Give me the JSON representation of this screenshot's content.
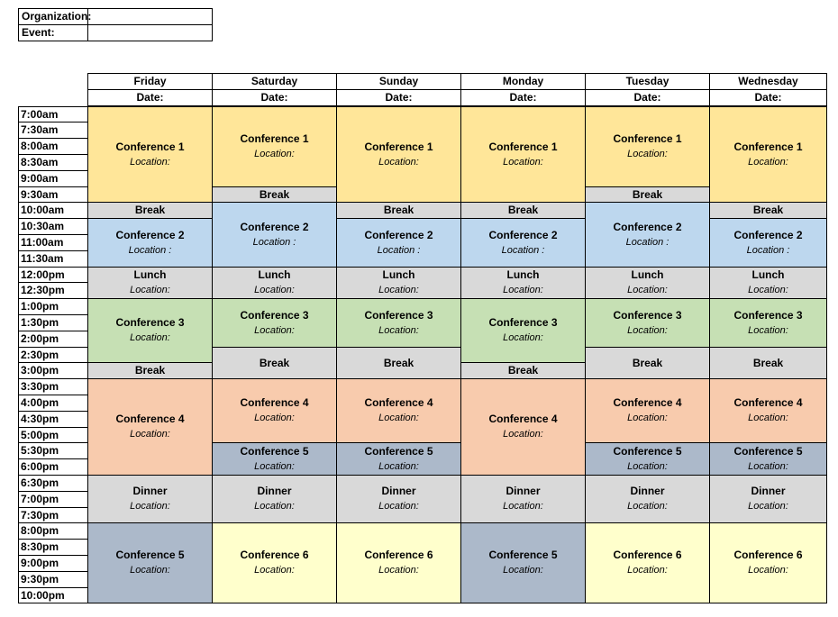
{
  "header": {
    "organization_label": "Organization:",
    "event_label": "Event:",
    "organization_value": "",
    "event_value": ""
  },
  "days": [
    "Friday",
    "Saturday",
    "Sunday",
    "Monday",
    "Tuesday",
    "Wednesday"
  ],
  "date_label": "Date:",
  "times": [
    "7:00am",
    "7:30am",
    "8:00am",
    "8:30am",
    "9:00am",
    "9:30am",
    "10:00am",
    "10:30am",
    "11:00am",
    "11:30am",
    "12:00pm",
    "12:30pm",
    "1:00pm",
    "1:30pm",
    "2:00pm",
    "2:30pm",
    "3:00pm",
    "3:30pm",
    "4:00pm",
    "4:30pm",
    "5:00pm",
    "5:30pm",
    "6:00pm",
    "6:30pm",
    "7:00pm",
    "7:30pm",
    "8:00pm",
    "8:30pm",
    "9:00pm",
    "9:30pm",
    "10:00pm"
  ],
  "colors": {
    "conference_1": "#FFE699",
    "conference_2": "#BDD7EE",
    "conference_3": "#C6E0B4",
    "conference_4": "#F8CBAD",
    "conference_5": "#ACB9CA",
    "conference_6": "#FFFFCC",
    "break_meal": "#D9D9D9"
  },
  "schedule": [
    [
      {
        "start": 0,
        "span": 6,
        "title": "Conference 1",
        "location": "Location:",
        "color": "c1"
      },
      {
        "start": 6,
        "span": 1,
        "title": "Break",
        "location": "",
        "color": "gray"
      },
      {
        "start": 7,
        "span": 3,
        "title": "Conference 2",
        "location": "Location :",
        "color": "c2"
      },
      {
        "start": 10,
        "span": 2,
        "title": "Lunch",
        "location": "Location:",
        "color": "gray"
      },
      {
        "start": 12,
        "span": 4,
        "title": "Conference 3",
        "location": "Location:",
        "color": "c3"
      },
      {
        "start": 16,
        "span": 1,
        "title": "Break",
        "location": "",
        "color": "gray"
      },
      {
        "start": 17,
        "span": 6,
        "title": "Conference 4",
        "location": "Location:",
        "color": "c4"
      },
      {
        "start": 23,
        "span": 3,
        "title": "Dinner",
        "location": "Location:",
        "color": "gray"
      },
      {
        "start": 26,
        "span": 5,
        "title": "Conference 5",
        "location": "Location:",
        "color": "c5"
      }
    ],
    [
      {
        "start": 0,
        "span": 5,
        "title": "Conference 1",
        "location": "Location:",
        "color": "c1"
      },
      {
        "start": 5,
        "span": 1,
        "title": "Break",
        "location": "",
        "color": "gray"
      },
      {
        "start": 6,
        "span": 4,
        "title": "Conference 2",
        "location": "Location :",
        "color": "c2"
      },
      {
        "start": 10,
        "span": 2,
        "title": "Lunch",
        "location": "Location:",
        "color": "gray"
      },
      {
        "start": 12,
        "span": 3,
        "title": "Conference 3",
        "location": "Location:",
        "color": "c3"
      },
      {
        "start": 15,
        "span": 2,
        "title": "Break",
        "location": "",
        "color": "gray"
      },
      {
        "start": 17,
        "span": 4,
        "title": "Conference 4",
        "location": "Location:",
        "color": "c4"
      },
      {
        "start": 21,
        "span": 2,
        "title": "Conference 5",
        "location": "Location:",
        "color": "c5"
      },
      {
        "start": 23,
        "span": 3,
        "title": "Dinner",
        "location": "Location:",
        "color": "gray"
      },
      {
        "start": 26,
        "span": 5,
        "title": "Conference 6",
        "location": "Location:",
        "color": "c6"
      }
    ],
    [
      {
        "start": 0,
        "span": 6,
        "title": "Conference 1",
        "location": "Location:",
        "color": "c1"
      },
      {
        "start": 6,
        "span": 1,
        "title": "Break",
        "location": "",
        "color": "gray"
      },
      {
        "start": 7,
        "span": 3,
        "title": "Conference 2",
        "location": "Location :",
        "color": "c2"
      },
      {
        "start": 10,
        "span": 2,
        "title": "Lunch",
        "location": "Location:",
        "color": "gray"
      },
      {
        "start": 12,
        "span": 3,
        "title": "Conference 3",
        "location": "Location:",
        "color": "c3"
      },
      {
        "start": 15,
        "span": 2,
        "title": "Break",
        "location": "",
        "color": "gray"
      },
      {
        "start": 17,
        "span": 4,
        "title": "Conference 4",
        "location": "Location:",
        "color": "c4"
      },
      {
        "start": 21,
        "span": 2,
        "title": "Conference 5",
        "location": "Location:",
        "color": "c5"
      },
      {
        "start": 23,
        "span": 3,
        "title": "Dinner",
        "location": "Location:",
        "color": "gray"
      },
      {
        "start": 26,
        "span": 5,
        "title": "Conference 6",
        "location": "Location:",
        "color": "c6"
      }
    ],
    [
      {
        "start": 0,
        "span": 6,
        "title": "Conference 1",
        "location": "Location:",
        "color": "c1"
      },
      {
        "start": 6,
        "span": 1,
        "title": "Break",
        "location": "",
        "color": "gray"
      },
      {
        "start": 7,
        "span": 3,
        "title": "Conference 2",
        "location": "Location :",
        "color": "c2"
      },
      {
        "start": 10,
        "span": 2,
        "title": "Lunch",
        "location": "Location:",
        "color": "gray"
      },
      {
        "start": 12,
        "span": 4,
        "title": "Conference 3",
        "location": "Location:",
        "color": "c3"
      },
      {
        "start": 16,
        "span": 1,
        "title": "Break",
        "location": "",
        "color": "gray"
      },
      {
        "start": 17,
        "span": 6,
        "title": "Conference 4",
        "location": "Location:",
        "color": "c4"
      },
      {
        "start": 23,
        "span": 3,
        "title": "Dinner",
        "location": "Location:",
        "color": "gray"
      },
      {
        "start": 26,
        "span": 5,
        "title": "Conference 5",
        "location": "Location:",
        "color": "c5"
      }
    ],
    [
      {
        "start": 0,
        "span": 5,
        "title": "Conference 1",
        "location": "Location:",
        "color": "c1"
      },
      {
        "start": 5,
        "span": 1,
        "title": "Break",
        "location": "",
        "color": "gray"
      },
      {
        "start": 6,
        "span": 4,
        "title": "Conference 2",
        "location": "Location :",
        "color": "c2"
      },
      {
        "start": 10,
        "span": 2,
        "title": "Lunch",
        "location": "Location:",
        "color": "gray"
      },
      {
        "start": 12,
        "span": 3,
        "title": "Conference 3",
        "location": "Location:",
        "color": "c3"
      },
      {
        "start": 15,
        "span": 2,
        "title": "Break",
        "location": "",
        "color": "gray"
      },
      {
        "start": 17,
        "span": 4,
        "title": "Conference 4",
        "location": "Location:",
        "color": "c4"
      },
      {
        "start": 21,
        "span": 2,
        "title": "Conference 5",
        "location": "Location:",
        "color": "c5"
      },
      {
        "start": 23,
        "span": 3,
        "title": "Dinner",
        "location": "Location:",
        "color": "gray"
      },
      {
        "start": 26,
        "span": 5,
        "title": "Conference 6",
        "location": "Location:",
        "color": "c6"
      }
    ],
    [
      {
        "start": 0,
        "span": 6,
        "title": "Conference 1",
        "location": "Location:",
        "color": "c1"
      },
      {
        "start": 6,
        "span": 1,
        "title": "Break",
        "location": "",
        "color": "gray"
      },
      {
        "start": 7,
        "span": 3,
        "title": "Conference 2",
        "location": "Location :",
        "color": "c2"
      },
      {
        "start": 10,
        "span": 2,
        "title": "Lunch",
        "location": "Location:",
        "color": "gray"
      },
      {
        "start": 12,
        "span": 3,
        "title": "Conference 3",
        "location": "Location:",
        "color": "c3"
      },
      {
        "start": 15,
        "span": 2,
        "title": "Break",
        "location": "",
        "color": "gray"
      },
      {
        "start": 17,
        "span": 4,
        "title": "Conference 4",
        "location": "Location:",
        "color": "c4"
      },
      {
        "start": 21,
        "span": 2,
        "title": "Conference 5",
        "location": "Location:",
        "color": "c5"
      },
      {
        "start": 23,
        "span": 3,
        "title": "Dinner",
        "location": "Location:",
        "color": "gray"
      },
      {
        "start": 26,
        "span": 5,
        "title": "Conference 6",
        "location": "Location:",
        "color": "c6"
      }
    ]
  ]
}
